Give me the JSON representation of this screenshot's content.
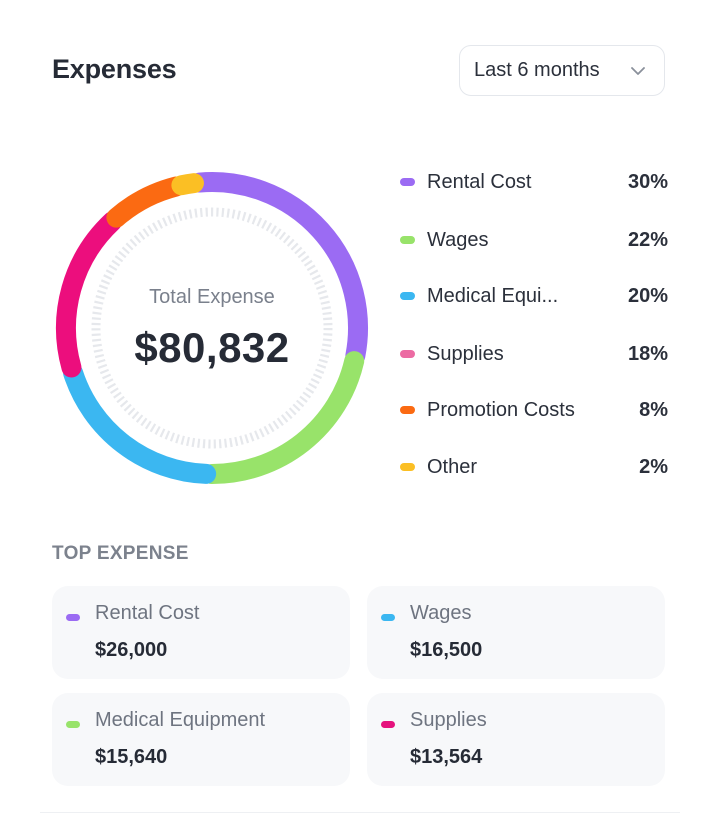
{
  "header": {
    "title": "Expenses",
    "range_select": {
      "value": "Last 6 months",
      "icon": "chevron-down-icon"
    }
  },
  "summary": {
    "caption": "Total Expense",
    "total": "$80,832"
  },
  "chart_data": {
    "type": "pie",
    "donut": true,
    "categories": [
      "Rental Cost",
      "Wages",
      "Medical Equi...",
      "Supplies",
      "Promotion Costs",
      "Other"
    ],
    "values": [
      30,
      22,
      20,
      18,
      8,
      2
    ],
    "unit": "%",
    "colors": [
      "#9b6bf3",
      "#98e36a",
      "#3bb7f1",
      "#ec0e7d",
      "#fb6a12",
      "#fbbf24"
    ]
  },
  "legend": [
    {
      "name": "Rental Cost",
      "percent": "30%",
      "color": "#9b6bf3"
    },
    {
      "name": "Wages",
      "percent": "22%",
      "color": "#98e36a"
    },
    {
      "name": "Medical Equi...",
      "percent": "20%",
      "color": "#3bb7f1"
    },
    {
      "name": "Supplies",
      "percent": "18%",
      "color": "#ec6ba3"
    },
    {
      "name": "Promotion Costs",
      "percent": "8%",
      "color": "#fb6a12"
    },
    {
      "name": "Other",
      "percent": "2%",
      "color": "#fbbf24"
    }
  ],
  "top_expense": {
    "label": "TOP EXPENSE",
    "items": [
      {
        "name": "Rental Cost",
        "amount": "$26,000",
        "color": "#9b6bf3"
      },
      {
        "name": "Wages",
        "amount": "$16,500",
        "color": "#3bb7f1"
      },
      {
        "name": "Medical Equipment",
        "amount": "$15,640",
        "color": "#98e36a"
      },
      {
        "name": "Supplies",
        "amount": "$13,564",
        "color": "#e5127d"
      }
    ]
  }
}
